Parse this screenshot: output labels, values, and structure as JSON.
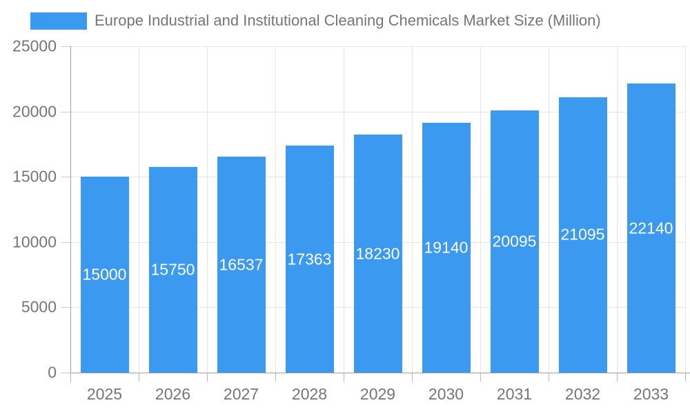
{
  "chart_data": {
    "type": "bar",
    "title": "Europe Industrial and Institutional Cleaning Chemicals Market Size (Million)",
    "legend_label": "Europe Industrial and Institutional Cleaning Chemicals Market Size (Million)",
    "legend_position": "top-left",
    "categories": [
      "2025",
      "2026",
      "2027",
      "2028",
      "2029",
      "2030",
      "2031",
      "2032",
      "2033"
    ],
    "values": [
      15000,
      15750,
      16537,
      17363,
      18230,
      19140,
      20095,
      21095,
      22140
    ],
    "xlabel": "",
    "ylabel": "",
    "ylim": [
      0,
      25000
    ],
    "yticks": [
      0,
      5000,
      10000,
      15000,
      20000,
      25000
    ],
    "grid": true,
    "colors": {
      "bar": "#3b99f0",
      "value_label": "#ffffff",
      "axis_text": "#757575",
      "grid_line": "#e4e4e4",
      "axis_line": "#9e9e9e"
    }
  }
}
